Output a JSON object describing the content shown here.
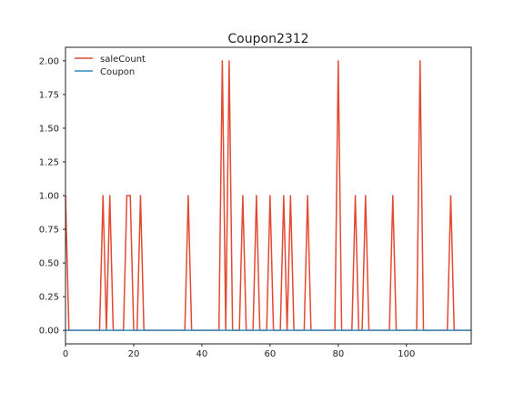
{
  "chart_data": {
    "type": "line",
    "title": "Coupon2312",
    "xlabel": "",
    "ylabel": "",
    "xlim": [
      0,
      119
    ],
    "ylim": [
      -0.1,
      2.1
    ],
    "xticks": [
      0,
      20,
      40,
      60,
      80,
      100
    ],
    "yticks": [
      0.0,
      0.25,
      0.5,
      0.75,
      1.0,
      1.25,
      1.5,
      1.75,
      2.0
    ],
    "xtick_labels": [
      "0",
      "20",
      "40",
      "60",
      "80",
      "100"
    ],
    "ytick_labels": [
      "0.00",
      "0.25",
      "0.50",
      "0.75",
      "1.00",
      "1.25",
      "1.50",
      "1.75",
      "2.00"
    ],
    "grid": false,
    "legend_position": "top-left",
    "series": [
      {
        "name": "saleCount",
        "color": "#e24a33",
        "x": [
          0,
          1,
          2,
          3,
          4,
          5,
          6,
          7,
          8,
          9,
          10,
          11,
          12,
          13,
          14,
          15,
          16,
          17,
          18,
          19,
          20,
          21,
          22,
          23,
          24,
          25,
          26,
          27,
          28,
          29,
          30,
          31,
          32,
          33,
          34,
          35,
          36,
          37,
          38,
          39,
          40,
          41,
          42,
          43,
          44,
          45,
          46,
          47,
          48,
          49,
          50,
          51,
          52,
          53,
          54,
          55,
          56,
          57,
          58,
          59,
          60,
          61,
          62,
          63,
          64,
          65,
          66,
          67,
          68,
          69,
          70,
          71,
          72,
          73,
          74,
          75,
          76,
          77,
          78,
          79,
          80,
          81,
          82,
          83,
          84,
          85,
          86,
          87,
          88,
          89,
          90,
          91,
          92,
          93,
          94,
          95,
          96,
          97,
          98,
          99,
          100,
          101,
          102,
          103,
          104,
          105,
          106,
          107,
          108,
          109,
          110,
          111,
          112,
          113,
          114,
          115,
          116,
          117,
          118,
          119
        ],
        "y": [
          1,
          0,
          0,
          0,
          0,
          0,
          0,
          0,
          0,
          0,
          0,
          1,
          0,
          1,
          0,
          0,
          0,
          0,
          1,
          1,
          0,
          0,
          1,
          0,
          0,
          0,
          0,
          0,
          0,
          0,
          0,
          0,
          0,
          0,
          0,
          0,
          1,
          0,
          0,
          0,
          0,
          0,
          0,
          0,
          0,
          0,
          2,
          0,
          2,
          0,
          0,
          0,
          1,
          0,
          0,
          0,
          1,
          0,
          0,
          0,
          1,
          0,
          0,
          0,
          1,
          0,
          1,
          0,
          0,
          0,
          0,
          1,
          0,
          0,
          0,
          0,
          0,
          0,
          0,
          0,
          2,
          0,
          0,
          0,
          0,
          1,
          0,
          0,
          1,
          0,
          0,
          0,
          0,
          0,
          0,
          0,
          1,
          0,
          0,
          0,
          0,
          0,
          0,
          0,
          2,
          0,
          0,
          0,
          0,
          0,
          0,
          0,
          0,
          1,
          0,
          0,
          0,
          0,
          0,
          0
        ]
      },
      {
        "name": "Coupon",
        "color": "#348abd",
        "x": [
          0,
          119
        ],
        "y": [
          0,
          0
        ]
      }
    ]
  }
}
